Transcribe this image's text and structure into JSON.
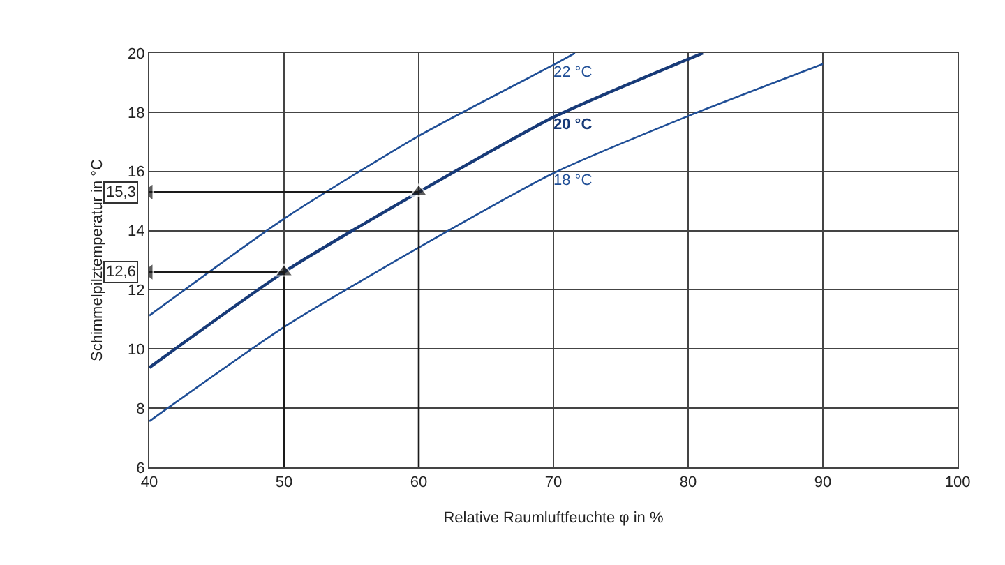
{
  "chart_data": {
    "type": "line",
    "xlabel": "Relative Raumluftfeuchte φ in %",
    "ylabel": "Schimmelpilztemperatur in °C",
    "xlim": [
      40,
      100
    ],
    "xticks": [
      40,
      50,
      60,
      70,
      80,
      90,
      100
    ],
    "ylim": [
      6,
      20
    ],
    "yticks": [
      6,
      8,
      10,
      12,
      14,
      16,
      18,
      20
    ],
    "grid": true,
    "legend": false,
    "marker": "none",
    "line_style": "solid",
    "series": [
      {
        "name": "22 °C",
        "color": "#1f4e96",
        "x": [
          40,
          50,
          60,
          70,
          71.6
        ],
        "values": [
          11.13,
          14.4,
          17.2,
          19.6,
          20
        ]
      },
      {
        "name": "20 °C",
        "color": "#173a78",
        "x": [
          40,
          50,
          60,
          70,
          81.1
        ],
        "values": [
          9.37,
          12.6,
          15.3,
          17.83,
          20
        ]
      },
      {
        "name": "18 °C",
        "color": "#1f4e96",
        "x": [
          40,
          50,
          60,
          70,
          80,
          90
        ],
        "values": [
          7.56,
          10.74,
          13.43,
          15.94,
          17.87,
          19.63
        ]
      },
      {
        "color": "#1a1a1a",
        "marker": "triangle",
        "x": [
          50,
          50,
          40
        ],
        "values": [
          6,
          12.6,
          12.6
        ]
      },
      {
        "color": "#1a1a1a",
        "marker": "triangle",
        "x": [
          60,
          60,
          40
        ],
        "values": [
          6,
          15.3,
          15.3
        ]
      }
    ],
    "annotations": [
      {
        "text": "12,6",
        "x": 40,
        "y": 12.6
      },
      {
        "text": "15,3",
        "x": 40,
        "y": 15.3
      }
    ]
  }
}
